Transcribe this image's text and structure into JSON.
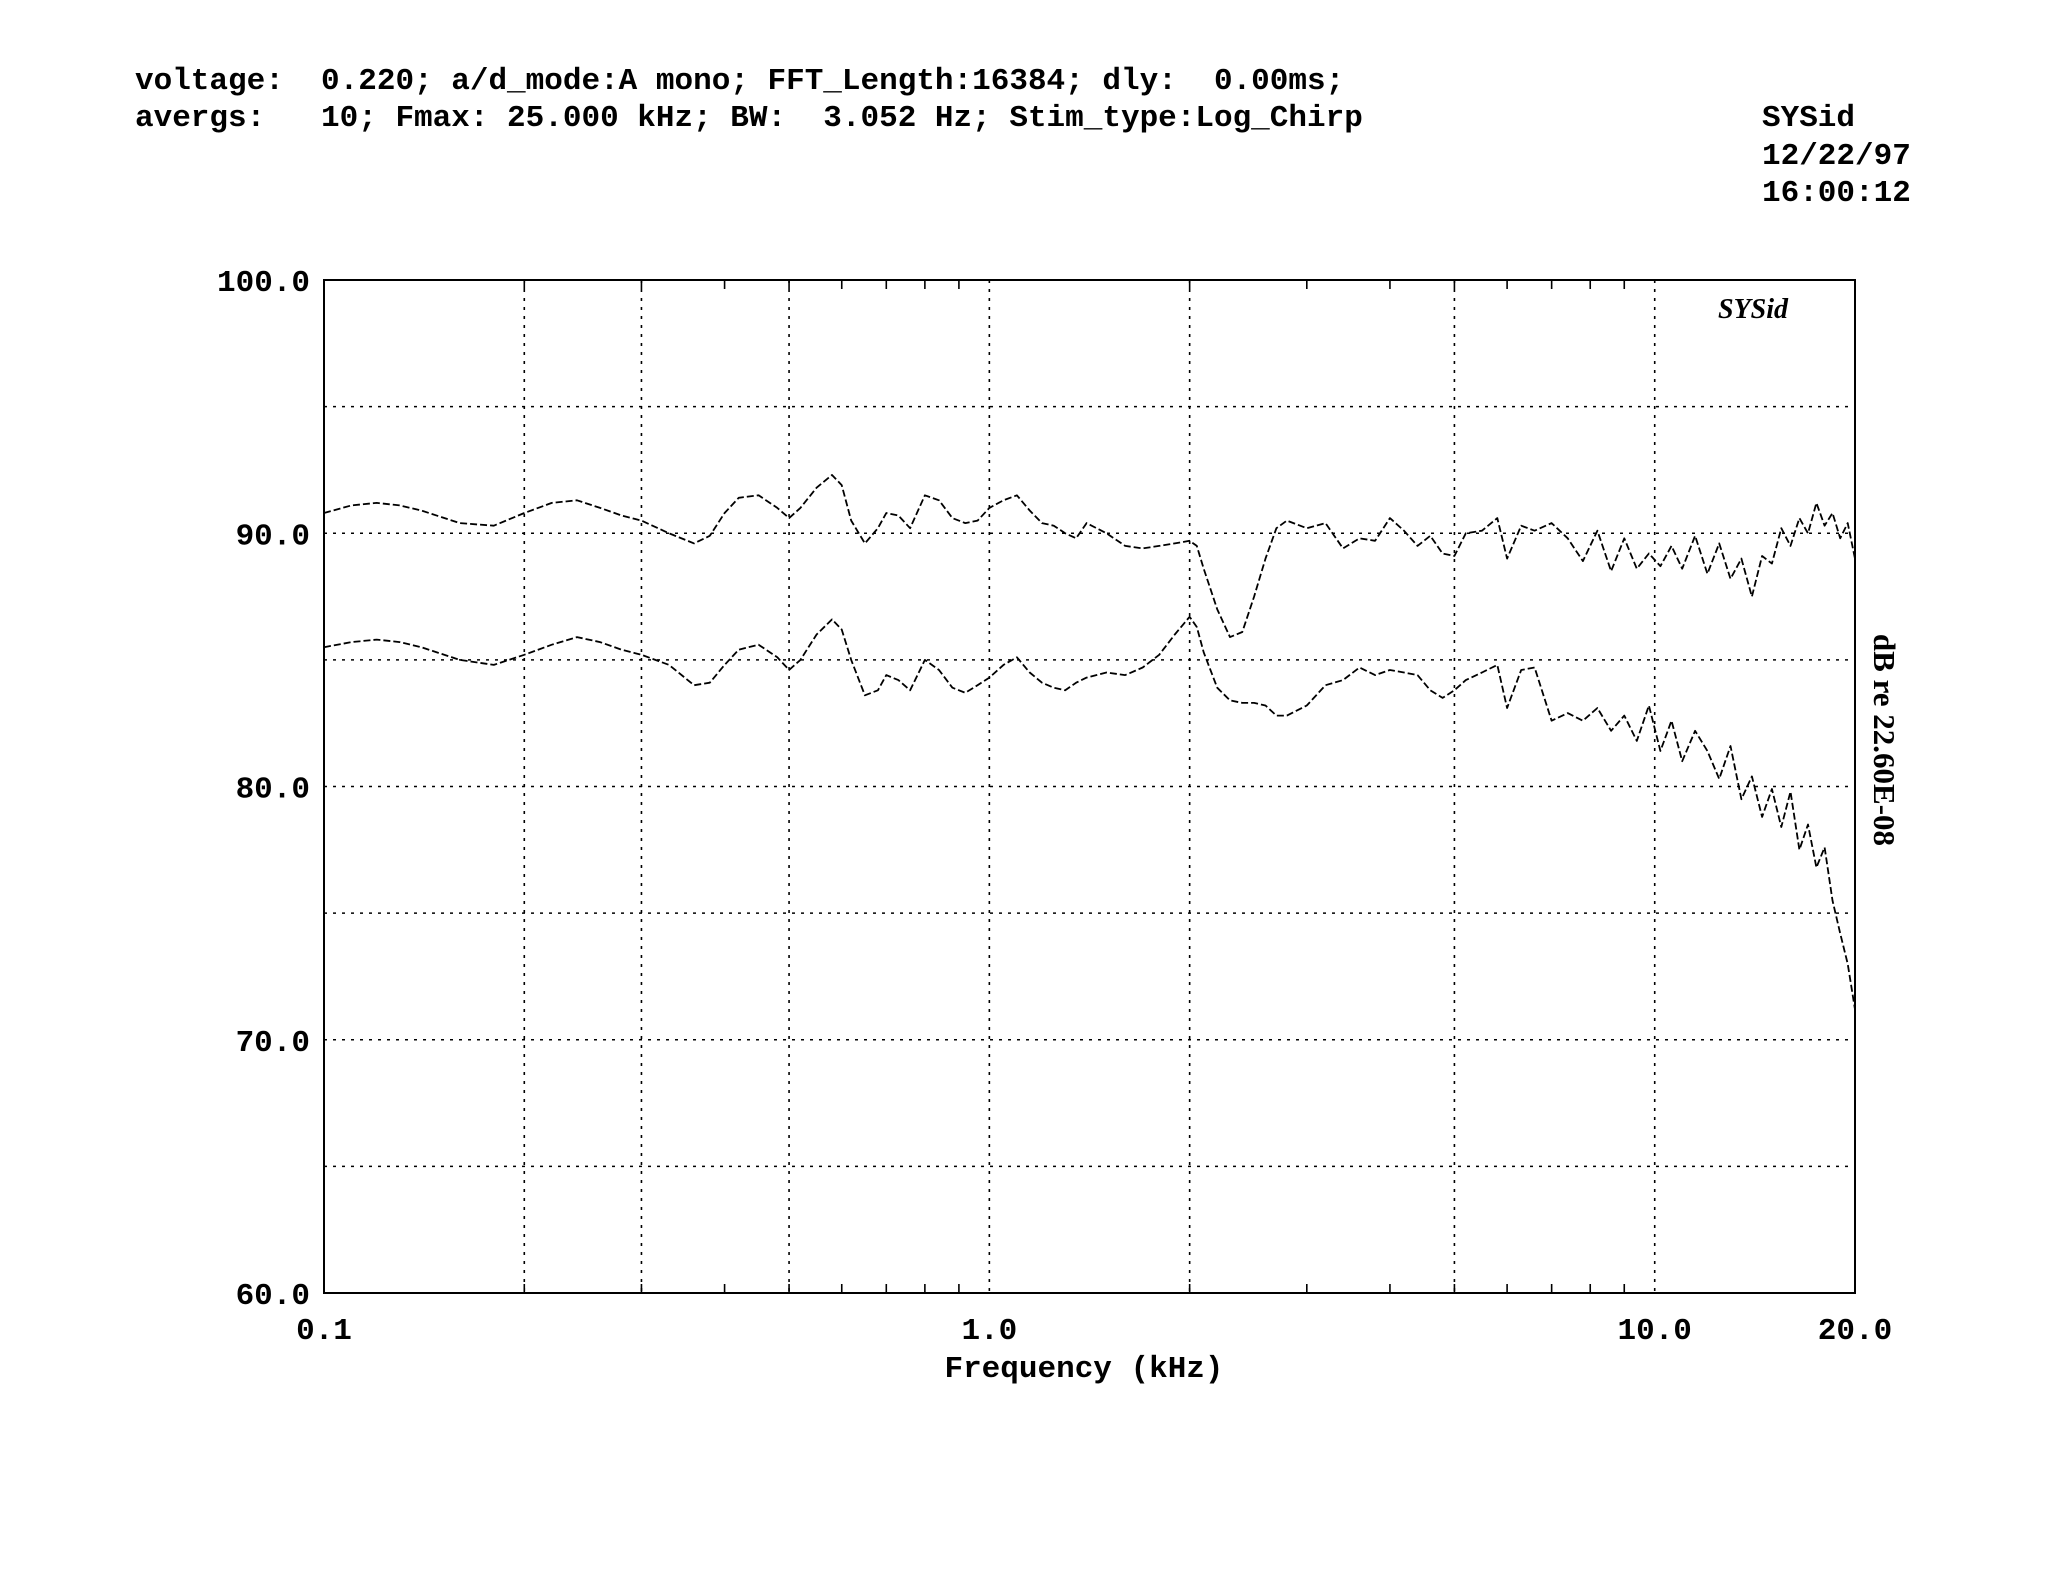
{
  "header": {
    "line1": "voltage:  0.220; a/d_mode:A mono; FFT_Length:16384; dly:  0.00ms;",
    "line2": "avergs:   10; Fmax: 25.000 kHz; BW:  3.052 Hz; Stim_type:Log_Chirp",
    "stamp_name": "SYSid",
    "stamp_date": "12/22/97",
    "stamp_time": "16:00:12"
  },
  "chart_data": {
    "type": "line",
    "title": "",
    "logo_text": "SYSid",
    "xlabel": "Frequency (kHz)",
    "ylabel": "dB re 22.60E-08",
    "xscale": "log",
    "xlim": [
      0.1,
      20.0
    ],
    "ylim": [
      60.0,
      100.0
    ],
    "grid": true,
    "line_style": "dashed",
    "y_ticks": [
      {
        "value": 100,
        "label": "100.0"
      },
      {
        "value": 90,
        "label": "90.0"
      },
      {
        "value": 80,
        "label": "80.0"
      },
      {
        "value": 70,
        "label": "70.0"
      },
      {
        "value": 60,
        "label": "60.0"
      }
    ],
    "y_gridlines": [
      65,
      70,
      75,
      80,
      85,
      90,
      95
    ],
    "x_ticks": [
      {
        "value": 0.1,
        "label": "0.1"
      },
      {
        "value": 1.0,
        "label": "1.0"
      },
      {
        "value": 10.0,
        "label": "10.0"
      },
      {
        "value": 20.0,
        "label": "20.0"
      }
    ],
    "x_gridlines": [
      0.2,
      0.3,
      0.5,
      1.0,
      2.0,
      5.0,
      10.0
    ],
    "x_minor_ticks": [
      0.2,
      0.3,
      0.4,
      0.5,
      0.6,
      0.7,
      0.8,
      0.9,
      2,
      3,
      4,
      5,
      6,
      7,
      8,
      9
    ],
    "series": [
      {
        "x": [
          0.1,
          0.11,
          0.12,
          0.13,
          0.14,
          0.16,
          0.18,
          0.2,
          0.22,
          0.24,
          0.26,
          0.28,
          0.3,
          0.33,
          0.36,
          0.38,
          0.4,
          0.42,
          0.45,
          0.48,
          0.5,
          0.52,
          0.55,
          0.58,
          0.6,
          0.62,
          0.65,
          0.68,
          0.7,
          0.73,
          0.76,
          0.8,
          0.84,
          0.88,
          0.92,
          0.96,
          1.0,
          1.05,
          1.1,
          1.15,
          1.2,
          1.25,
          1.3,
          1.35,
          1.4,
          1.5,
          1.6,
          1.7,
          1.8,
          1.9,
          2.0,
          2.05,
          2.1,
          2.2,
          2.3,
          2.4,
          2.5,
          2.6,
          2.7,
          2.8,
          3.0,
          3.2,
          3.4,
          3.6,
          3.8,
          4.0,
          4.2,
          4.4,
          4.6,
          4.8,
          5.0,
          5.2,
          5.5,
          5.8,
          6.0,
          6.3,
          6.6,
          7.0,
          7.4,
          7.8,
          8.2,
          8.6,
          9.0,
          9.4,
          9.8,
          10.2,
          10.6,
          11.0,
          11.5,
          12.0,
          12.5,
          13.0,
          13.5,
          14.0,
          14.5,
          15.0,
          15.5,
          16.0,
          16.5,
          17.0,
          17.5,
          18.0,
          18.5,
          19.0,
          19.5,
          20.0
        ],
        "y": [
          90.8,
          91.1,
          91.2,
          91.1,
          90.9,
          90.4,
          90.3,
          90.8,
          91.2,
          91.3,
          91.0,
          90.7,
          90.5,
          90.0,
          89.6,
          89.9,
          90.8,
          91.4,
          91.5,
          91.0,
          90.6,
          91.0,
          91.8,
          92.3,
          91.9,
          90.5,
          89.6,
          90.2,
          90.8,
          90.7,
          90.2,
          91.5,
          91.3,
          90.6,
          90.4,
          90.5,
          91.0,
          91.3,
          91.5,
          90.9,
          90.4,
          90.3,
          90.0,
          89.8,
          90.4,
          90.0,
          89.5,
          89.4,
          89.5,
          89.6,
          89.7,
          89.5,
          88.6,
          87.0,
          85.9,
          86.1,
          87.5,
          89.0,
          90.2,
          90.5,
          90.2,
          90.4,
          89.4,
          89.8,
          89.7,
          90.6,
          90.1,
          89.5,
          89.9,
          89.2,
          89.1,
          90.0,
          90.1,
          90.6,
          89.0,
          90.3,
          90.1,
          90.4,
          89.8,
          88.9,
          90.1,
          88.5,
          89.8,
          88.6,
          89.2,
          88.7,
          89.5,
          88.6,
          89.9,
          88.4,
          89.6,
          88.2,
          89.0,
          87.5,
          89.1,
          88.8,
          90.2,
          89.5,
          90.6,
          90.0,
          91.2,
          90.3,
          90.8,
          89.8,
          90.4,
          89.0
        ]
      },
      {
        "x": [
          0.1,
          0.11,
          0.12,
          0.13,
          0.14,
          0.16,
          0.18,
          0.2,
          0.22,
          0.24,
          0.26,
          0.28,
          0.3,
          0.33,
          0.36,
          0.38,
          0.4,
          0.42,
          0.45,
          0.48,
          0.5,
          0.52,
          0.55,
          0.58,
          0.6,
          0.62,
          0.65,
          0.68,
          0.7,
          0.73,
          0.76,
          0.8,
          0.84,
          0.88,
          0.92,
          0.96,
          1.0,
          1.05,
          1.1,
          1.15,
          1.2,
          1.25,
          1.3,
          1.35,
          1.4,
          1.5,
          1.6,
          1.7,
          1.8,
          1.9,
          2.0,
          2.05,
          2.1,
          2.2,
          2.3,
          2.4,
          2.5,
          2.6,
          2.7,
          2.8,
          3.0,
          3.2,
          3.4,
          3.6,
          3.8,
          4.0,
          4.2,
          4.4,
          4.6,
          4.8,
          5.0,
          5.2,
          5.5,
          5.8,
          6.0,
          6.3,
          6.6,
          7.0,
          7.4,
          7.8,
          8.2,
          8.6,
          9.0,
          9.4,
          9.8,
          10.2,
          10.6,
          11.0,
          11.5,
          12.0,
          12.5,
          13.0,
          13.5,
          14.0,
          14.5,
          15.0,
          15.5,
          16.0,
          16.5,
          17.0,
          17.5,
          18.0,
          18.5,
          19.0,
          19.5,
          20.0
        ],
        "y": [
          85.5,
          85.7,
          85.8,
          85.7,
          85.5,
          85.0,
          84.8,
          85.2,
          85.6,
          85.9,
          85.7,
          85.4,
          85.2,
          84.8,
          84.0,
          84.1,
          84.8,
          85.4,
          85.6,
          85.1,
          84.6,
          85.0,
          86.0,
          86.6,
          86.2,
          85.0,
          83.6,
          83.8,
          84.4,
          84.2,
          83.8,
          85.0,
          84.6,
          83.9,
          83.7,
          84.0,
          84.3,
          84.8,
          85.1,
          84.5,
          84.1,
          83.9,
          83.8,
          84.1,
          84.3,
          84.5,
          84.4,
          84.7,
          85.2,
          86.0,
          86.7,
          86.3,
          85.3,
          83.9,
          83.4,
          83.3,
          83.3,
          83.2,
          82.8,
          82.8,
          83.2,
          84.0,
          84.2,
          84.7,
          84.4,
          84.6,
          84.5,
          84.4,
          83.8,
          83.5,
          83.8,
          84.2,
          84.5,
          84.8,
          83.1,
          84.6,
          84.7,
          82.6,
          82.9,
          82.6,
          83.1,
          82.2,
          82.8,
          81.8,
          83.2,
          81.4,
          82.6,
          81.0,
          82.2,
          81.4,
          80.3,
          81.6,
          79.5,
          80.4,
          78.8,
          79.9,
          78.4,
          79.8,
          77.5,
          78.5,
          76.8,
          77.6,
          75.5,
          74.2,
          73.0,
          71.2
        ]
      }
    ]
  }
}
